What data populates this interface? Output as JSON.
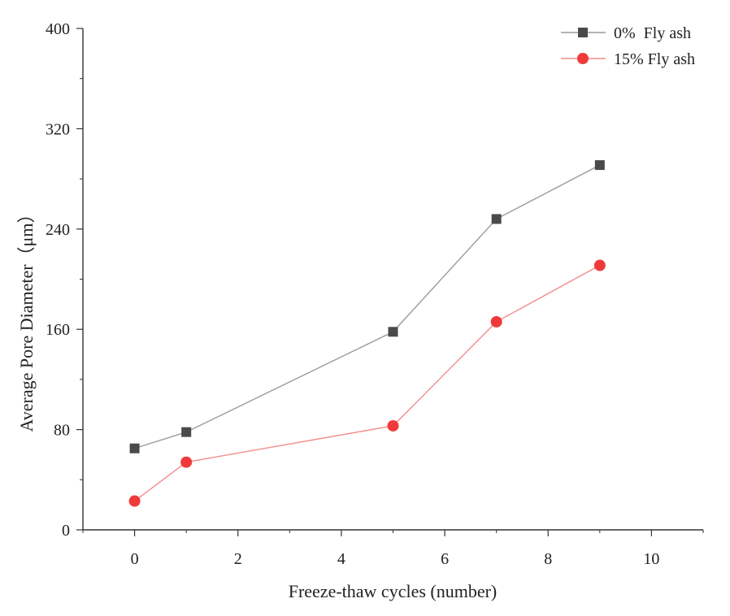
{
  "chart_data": {
    "type": "line",
    "title": "",
    "xlabel": "Freeze-thaw cycles (number)",
    "ylabel": "Average Pore Diameter（μm）",
    "xlim": [
      -1,
      11
    ],
    "ylim": [
      0,
      400
    ],
    "xticks": [
      0,
      2,
      4,
      6,
      8,
      10
    ],
    "yticks": [
      0,
      80,
      160,
      240,
      320,
      400
    ],
    "grid": false,
    "legend_position": "top-right",
    "x": [
      0,
      1,
      5,
      7,
      9
    ],
    "series": [
      {
        "name": "0%  Fly ash",
        "marker": "square",
        "color": "#4a4a4a",
        "line_color": "#9a9a9a",
        "values": [
          65,
          78,
          158,
          248,
          291
        ]
      },
      {
        "name": "15% Fly ash",
        "marker": "circle",
        "color": "#f03a3a",
        "line_color": "#f28b8b",
        "values": [
          23,
          54,
          83,
          166,
          211
        ]
      }
    ]
  }
}
